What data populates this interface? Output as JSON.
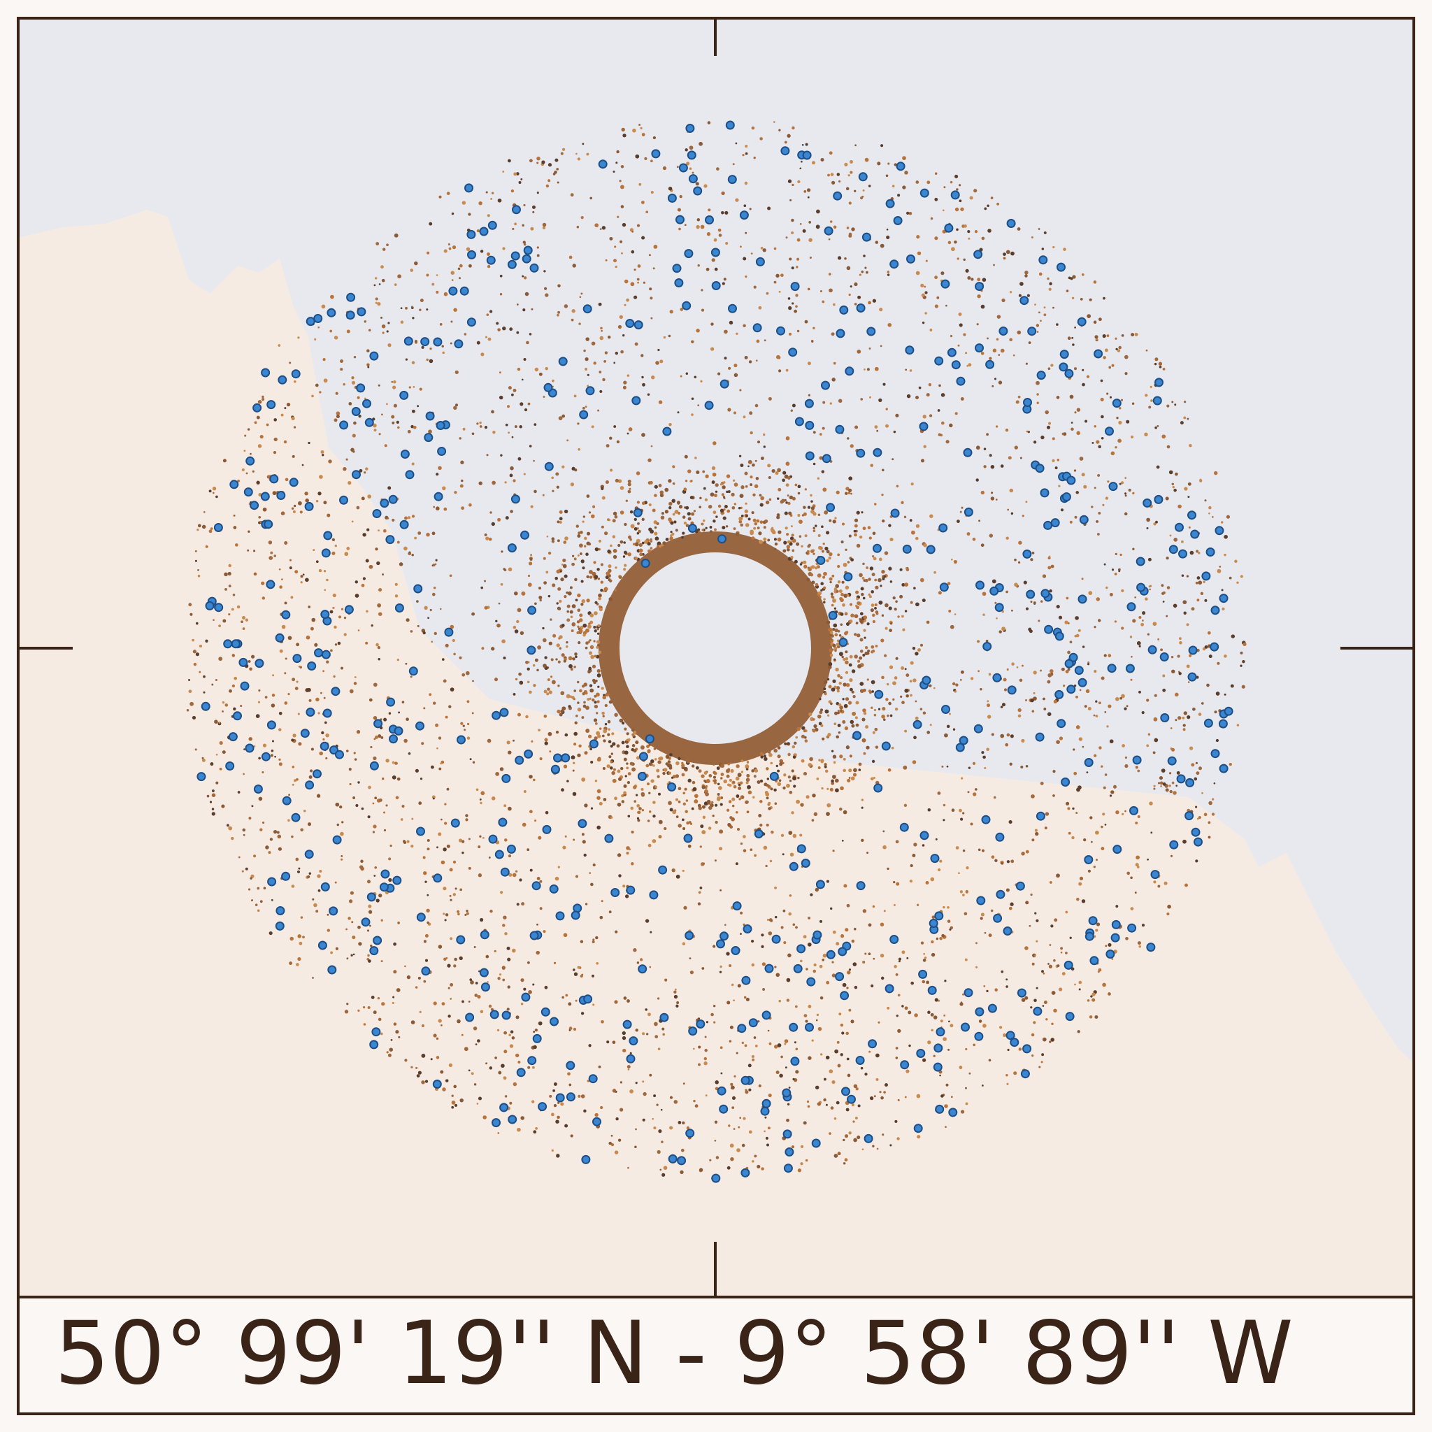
{
  "caption": "50° 99' 19'' N - 9° 58' 89'' W"
}
